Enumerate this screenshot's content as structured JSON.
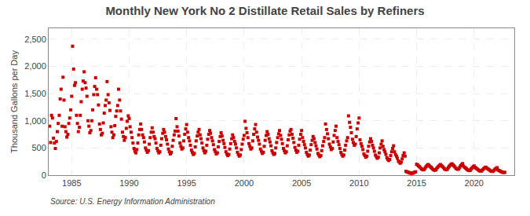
{
  "chart_data": {
    "type": "scatter",
    "title": "Monthly New York No 2 Distillate Retail Sales by Refiners",
    "ylabel": "Thousand Gallons per Day",
    "annotations": [
      "Source: U.S. Energy Information Administration"
    ],
    "color": "#cc0000",
    "marker": "square",
    "grid": true,
    "xlim": [
      1983.0,
      2023.5
    ],
    "xticks": [
      1985,
      1990,
      1995,
      2000,
      2005,
      2010,
      2015,
      2020
    ],
    "ylim": [
      0,
      2700
    ],
    "yticks": [
      0,
      500,
      {
        "value": 1000,
        "label": "1,000"
      },
      {
        "value": 1500,
        "label": "1,500"
      },
      {
        "value": 2000,
        "label": "2,000"
      },
      {
        "value": 2500,
        "label": "2,500"
      }
    ],
    "x": [
      1983.08,
      1983.17,
      1983.25,
      1983.33,
      1983.42,
      1983.5,
      1983.58,
      1983.67,
      1983.75,
      1983.83,
      1983.92,
      1984.0,
      1984.08,
      1984.17,
      1984.25,
      1984.33,
      1984.42,
      1984.5,
      1984.58,
      1984.67,
      1984.75,
      1984.83,
      1984.92,
      1985.0,
      1985.08,
      1985.17,
      1985.25,
      1985.33,
      1985.42,
      1985.5,
      1985.58,
      1985.67,
      1985.75,
      1985.83,
      1985.92,
      1986.0,
      1986.08,
      1986.17,
      1986.25,
      1986.33,
      1986.42,
      1986.5,
      1986.58,
      1986.67,
      1986.75,
      1986.83,
      1986.92,
      1987.0,
      1987.08,
      1987.17,
      1987.25,
      1987.33,
      1987.42,
      1987.5,
      1987.58,
      1987.67,
      1987.75,
      1987.83,
      1987.92,
      1988.0,
      1988.08,
      1988.17,
      1988.25,
      1988.33,
      1988.42,
      1988.5,
      1988.58,
      1988.67,
      1988.75,
      1988.83,
      1988.92,
      1989.0,
      1989.08,
      1989.17,
      1989.25,
      1989.33,
      1989.42,
      1989.5,
      1989.58,
      1989.67,
      1989.75,
      1989.83,
      1989.92,
      1990.0,
      1990.08,
      1990.17,
      1990.25,
      1990.33,
      1990.42,
      1990.5,
      1990.58,
      1990.67,
      1990.75,
      1990.83,
      1990.92,
      1991.0,
      1991.08,
      1991.17,
      1991.25,
      1991.33,
      1991.42,
      1991.5,
      1991.58,
      1991.67,
      1991.75,
      1991.83,
      1991.92,
      1992.0,
      1992.08,
      1992.17,
      1992.25,
      1992.33,
      1992.42,
      1992.5,
      1992.58,
      1992.67,
      1992.75,
      1992.83,
      1992.92,
      1993.0,
      1993.08,
      1993.17,
      1993.25,
      1993.33,
      1993.42,
      1993.5,
      1993.58,
      1993.67,
      1993.75,
      1993.83,
      1993.92,
      1994.0,
      1994.08,
      1994.17,
      1994.25,
      1994.33,
      1994.42,
      1994.5,
      1994.58,
      1994.67,
      1994.75,
      1994.83,
      1994.92,
      1995.0,
      1995.08,
      1995.17,
      1995.25,
      1995.33,
      1995.42,
      1995.5,
      1995.58,
      1995.67,
      1995.75,
      1995.83,
      1995.92,
      1996.0,
      1996.08,
      1996.17,
      1996.25,
      1996.33,
      1996.42,
      1996.5,
      1996.58,
      1996.67,
      1996.75,
      1996.83,
      1996.92,
      1997.0,
      1997.08,
      1997.17,
      1997.25,
      1997.33,
      1997.42,
      1997.5,
      1997.58,
      1997.67,
      1997.75,
      1997.83,
      1997.92,
      1998.0,
      1998.08,
      1998.17,
      1998.25,
      1998.33,
      1998.42,
      1998.5,
      1998.58,
      1998.67,
      1998.75,
      1998.83,
      1998.92,
      1999.0,
      1999.08,
      1999.17,
      1999.25,
      1999.33,
      1999.42,
      1999.5,
      1999.58,
      1999.67,
      1999.75,
      1999.83,
      1999.92,
      2000.0,
      2000.08,
      2000.17,
      2000.25,
      2000.33,
      2000.42,
      2000.5,
      2000.58,
      2000.67,
      2000.75,
      2000.83,
      2000.92,
      2001.0,
      2001.08,
      2001.17,
      2001.25,
      2001.33,
      2001.42,
      2001.5,
      2001.58,
      2001.67,
      2001.75,
      2001.83,
      2001.92,
      2002.0,
      2002.08,
      2002.17,
      2002.25,
      2002.33,
      2002.42,
      2002.5,
      2002.58,
      2002.67,
      2002.75,
      2002.83,
      2002.92,
      2003.0,
      2003.08,
      2003.17,
      2003.25,
      2003.33,
      2003.42,
      2003.5,
      2003.58,
      2003.67,
      2003.75,
      2003.83,
      2003.92,
      2004.0,
      2004.08,
      2004.17,
      2004.25,
      2004.33,
      2004.42,
      2004.5,
      2004.58,
      2004.67,
      2004.75,
      2004.83,
      2004.92,
      2005.0,
      2005.08,
      2005.17,
      2005.25,
      2005.33,
      2005.42,
      2005.5,
      2005.58,
      2005.67,
      2005.75,
      2005.83,
      2005.92,
      2006.0,
      2006.08,
      2006.17,
      2006.25,
      2006.33,
      2006.42,
      2006.5,
      2006.58,
      2006.67,
      2006.75,
      2006.83,
      2006.92,
      2007.0,
      2007.08,
      2007.17,
      2007.25,
      2007.33,
      2007.42,
      2007.5,
      2007.58,
      2007.67,
      2007.75,
      2007.83,
      2007.92,
      2008.0,
      2008.08,
      2008.17,
      2008.25,
      2008.33,
      2008.42,
      2008.5,
      2008.58,
      2008.67,
      2008.75,
      2008.83,
      2008.92,
      2009.0,
      2009.08,
      2009.17,
      2009.25,
      2009.33,
      2009.42,
      2009.5,
      2009.58,
      2009.67,
      2009.75,
      2009.83,
      2009.92,
      2010.0,
      2010.08,
      2010.17,
      2010.25,
      2010.33,
      2010.42,
      2010.5,
      2010.58,
      2010.67,
      2010.75,
      2010.83,
      2010.92,
      2011.0,
      2011.08,
      2011.17,
      2011.25,
      2011.33,
      2011.42,
      2011.5,
      2011.58,
      2011.67,
      2011.75,
      2011.83,
      2011.92,
      2012.0,
      2012.08,
      2012.17,
      2012.25,
      2012.33,
      2012.42,
      2012.5,
      2012.58,
      2012.67,
      2012.75,
      2012.83,
      2012.92,
      2013.0,
      2013.08,
      2013.17,
      2013.25,
      2013.33,
      2013.42,
      2013.5,
      2013.58,
      2013.67,
      2013.75,
      2013.83,
      2013.92,
      2014.0,
      2014.08,
      2014.17,
      2014.25,
      2014.33,
      2014.42,
      2014.5,
      2014.58,
      2014.67,
      2014.75,
      2014.83,
      2014.92,
      2015.0,
      2015.08,
      2015.17,
      2015.25,
      2015.33,
      2015.42,
      2015.5,
      2015.58,
      2015.67,
      2015.75,
      2015.83,
      2015.92,
      2016.0,
      2016.08,
      2016.17,
      2016.25,
      2016.33,
      2016.42,
      2016.5,
      2016.58,
      2016.67,
      2016.75,
      2016.83,
      2016.92,
      2017.0,
      2017.08,
      2017.17,
      2017.25,
      2017.33,
      2017.42,
      2017.5,
      2017.58,
      2017.67,
      2017.75,
      2017.83,
      2017.92,
      2018.0,
      2018.08,
      2018.17,
      2018.25,
      2018.33,
      2018.42,
      2018.5,
      2018.58,
      2018.67,
      2018.75,
      2018.83,
      2018.92,
      2019.0,
      2019.08,
      2019.17,
      2019.25,
      2019.33,
      2019.42,
      2019.5,
      2019.58,
      2019.67,
      2019.75,
      2019.83,
      2019.92,
      2020.0,
      2020.08,
      2020.17,
      2020.25,
      2020.33,
      2020.42,
      2020.5,
      2020.58,
      2020.67,
      2020.75,
      2020.83,
      2020.92,
      2021.0,
      2021.08,
      2021.17,
      2021.25,
      2021.33,
      2021.42,
      2021.5,
      2021.58,
      2021.67,
      2021.75,
      2021.83,
      2021.92,
      2022.0,
      2022.08,
      2022.17,
      2022.25,
      2022.33,
      2022.42,
      2022.5,
      2022.58,
      2022.67
    ],
    "values": [
      900,
      600,
      1100,
      1050,
      680,
      590,
      490,
      620,
      800,
      950,
      1100,
      1400,
      1580,
      900,
      1800,
      1380,
      890,
      800,
      700,
      750,
      950,
      1050,
      1200,
      1450,
      2370,
      1950,
      1650,
      1700,
      1100,
      950,
      800,
      880,
      1100,
      1350,
      1580,
      1730,
      1900,
      1700,
      1600,
      1450,
      1000,
      900,
      780,
      820,
      1000,
      1200,
      1480,
      1630,
      1790,
      1580,
      1480,
      1290,
      940,
      840,
      740,
      770,
      960,
      1140,
      1280,
      1380,
      1720,
      1480,
      1330,
      1190,
      890,
      790,
      690,
      740,
      910,
      1080,
      1180,
      1280,
      1580,
      1380,
      1180,
      1030,
      790,
      710,
      640,
      690,
      860,
      990,
      1090,
      1040,
      890,
      790,
      690,
      590,
      490,
      440,
      410,
      470,
      590,
      740,
      840,
      940,
      840,
      740,
      690,
      610,
      500,
      460,
      420,
      450,
      570,
      690,
      790,
      870,
      790,
      710,
      670,
      590,
      490,
      450,
      410,
      430,
      550,
      670,
      770,
      840,
      790,
      710,
      650,
      570,
      480,
      430,
      390,
      420,
      530,
      640,
      740,
      810,
      1040,
      890,
      810,
      720,
      590,
      530,
      480,
      500,
      630,
      750,
      850,
      930,
      790,
      690,
      630,
      550,
      460,
      420,
      380,
      400,
      520,
      630,
      720,
      790,
      840,
      740,
      670,
      590,
      500,
      450,
      410,
      440,
      550,
      660,
      750,
      820,
      770,
      690,
      630,
      560,
      470,
      430,
      390,
      410,
      520,
      620,
      710,
      780,
      720,
      640,
      580,
      510,
      430,
      390,
      360,
      380,
      480,
      580,
      670,
      740,
      690,
      620,
      570,
      500,
      420,
      380,
      350,
      370,
      470,
      570,
      660,
      730,
      990,
      860,
      780,
      690,
      580,
      530,
      480,
      500,
      630,
      750,
      850,
      930,
      790,
      700,
      640,
      570,
      480,
      440,
      400,
      420,
      530,
      640,
      730,
      800,
      750,
      670,
      610,
      540,
      450,
      410,
      380,
      400,
      500,
      600,
      690,
      760,
      820,
      730,
      660,
      580,
      490,
      450,
      410,
      430,
      540,
      650,
      740,
      810,
      840,
      750,
      680,
      600,
      510,
      460,
      420,
      440,
      550,
      660,
      750,
      820,
      690,
      620,
      560,
      500,
      420,
      380,
      350,
      370,
      460,
      560,
      640,
      710,
      670,
      600,
      540,
      480,
      400,
      370,
      340,
      360,
      450,
      540,
      620,
      690,
      940,
      840,
      760,
      670,
      570,
      520,
      470,
      490,
      610,
      730,
      820,
      900,
      690,
      620,
      560,
      490,
      420,
      380,
      350,
      370,
      460,
      550,
      630,
      690,
      1090,
      970,
      880,
      780,
      660,
      600,
      550,
      570,
      710,
      850,
      960,
      1050,
      650,
      580,
      530,
      470,
      390,
      360,
      330,
      350,
      440,
      530,
      610,
      670,
      620,
      550,
      500,
      440,
      370,
      340,
      310,
      330,
      410,
      500,
      570,
      630,
      530,
      470,
      430,
      380,
      320,
      290,
      270,
      290,
      360,
      430,
      490,
      540,
      430,
      380,
      350,
      310,
      260,
      240,
      220,
      240,
      300,
      360,
      410,
      350,
      70,
      60,
      55,
      48,
      40,
      36,
      33,
      36,
      45,
      54,
      62,
      200,
      190,
      170,
      155,
      138,
      115,
      105,
      98,
      105,
      132,
      158,
      178,
      195,
      180,
      160,
      145,
      128,
      107,
      97,
      90,
      97,
      122,
      146,
      164,
      180,
      195,
      174,
      158,
      140,
      117,
      107,
      99,
      107,
      135,
      161,
      181,
      198,
      210,
      187,
      170,
      151,
      126,
      115,
      107,
      115,
      145,
      173,
      194,
      212,
      165,
      147,
      133,
      118,
      99,
      90,
      84,
      90,
      113,
      135,
      152,
      170,
      145,
      129,
      117,
      104,
      87,
      79,
      74,
      79,
      100,
      119,
      134,
      147,
      135,
      120,
      109,
      97,
      81,
      74,
      69,
      74,
      93,
      111,
      125,
      137,
      95,
      85,
      77,
      68,
      57,
      52,
      48,
      52
    ]
  }
}
